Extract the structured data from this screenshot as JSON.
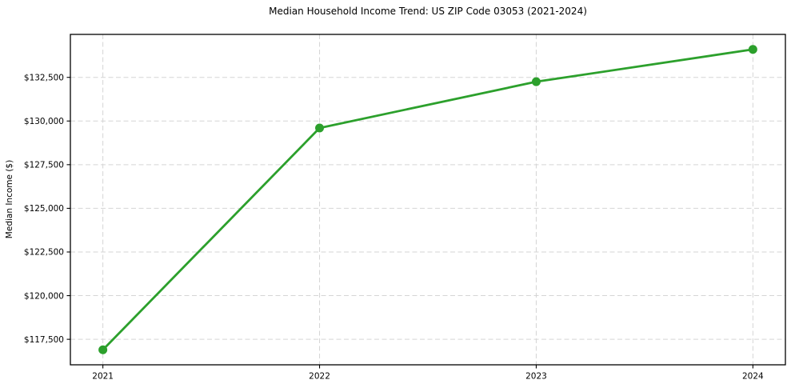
{
  "chart": {
    "title": "Median Household Income Trend: US ZIP Code 03053 (2021-2024)",
    "ylabel": "Median Income ($)",
    "xlabel": ""
  },
  "chart_data": {
    "type": "line",
    "title": "Median Household Income Trend: US ZIP Code 03053 (2021-2024)",
    "xlabel": "",
    "ylabel": "Median Income ($)",
    "categories": [
      "2021",
      "2022",
      "2023",
      "2024"
    ],
    "x": [
      2021,
      2022,
      2023,
      2024
    ],
    "series": [
      {
        "name": "Median Household Income",
        "values": [
          116900,
          129600,
          132250,
          134100
        ]
      }
    ],
    "xlim": [
      2020.85,
      2024.15
    ],
    "ylim": [
      116040,
      134960
    ],
    "xticks": [
      2021,
      2022,
      2023,
      2024
    ],
    "xtick_labels": [
      "2021",
      "2022",
      "2023",
      "2024"
    ],
    "yticks": [
      117500,
      120000,
      122500,
      125000,
      127500,
      130000,
      132500
    ],
    "ytick_labels": [
      "$117,500",
      "$120,000",
      "$122,500",
      "$125,000",
      "$127,500",
      "$130,000",
      "$132,500"
    ],
    "grid": true,
    "grid_style": "dashed",
    "legend": "none",
    "line_color": "#2ca02c",
    "marker": "circle",
    "marker_color": "#2ca02c",
    "grid_color": "#d5d5d5",
    "spine_color": "#000000",
    "background_color": "#ffffff"
  }
}
